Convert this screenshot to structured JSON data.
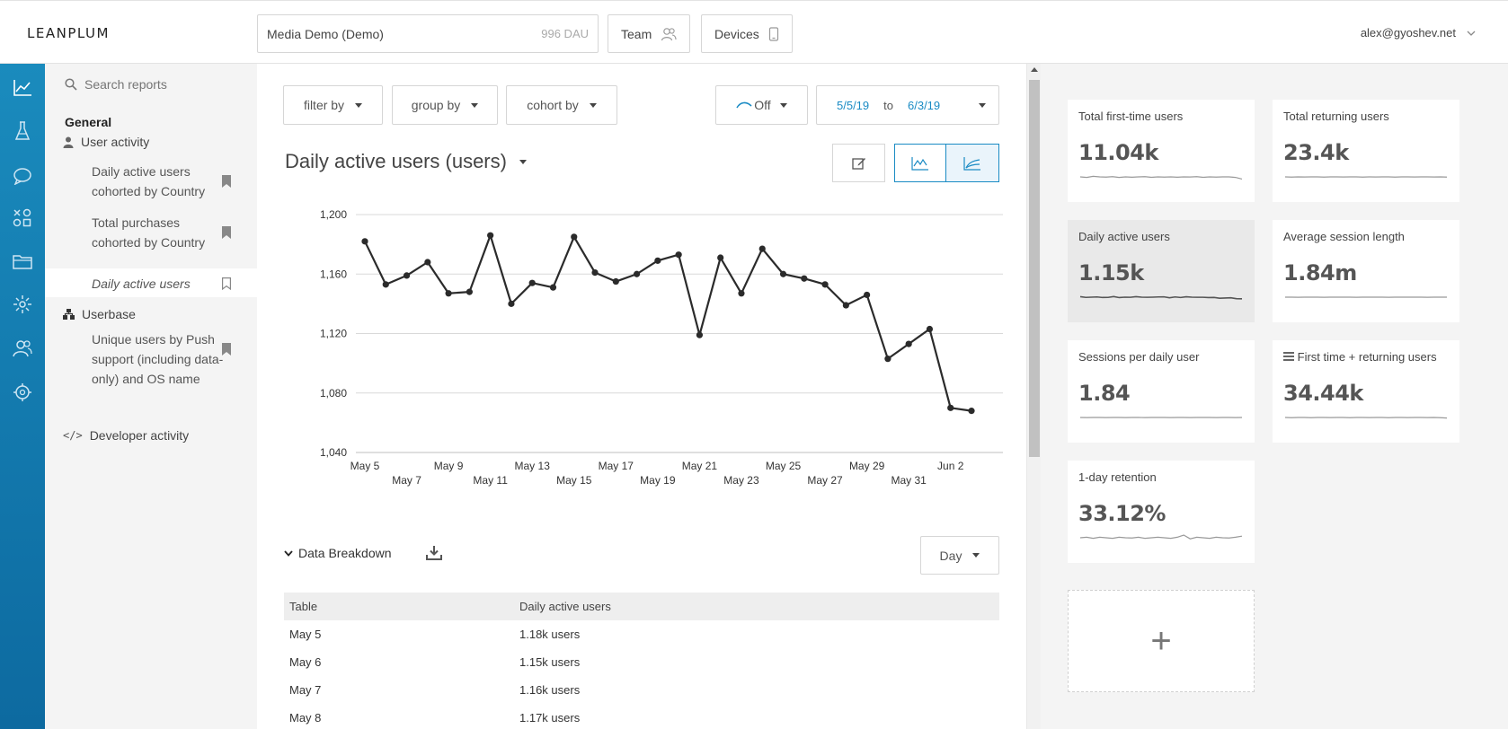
{
  "header": {
    "logo": "LEANPLUM",
    "app_name": "Media Demo (Demo)",
    "app_dau": "996 DAU",
    "team_label": "Team",
    "devices_label": "Devices",
    "user_email": "alex@gyoshev.net"
  },
  "rail": {
    "icons": [
      "analytics-icon",
      "ab-test-icon",
      "messaging-icon",
      "variables-icon",
      "folder-icon",
      "events-icon",
      "users-icon",
      "debug-icon"
    ]
  },
  "nav": {
    "search_placeholder": "Search reports",
    "section": "General",
    "groups": {
      "user_activity": "User activity",
      "userbase": "Userbase",
      "developer_activity": "Developer activity"
    },
    "items": {
      "dau_country": "Daily active users cohorted by Country",
      "purchases_country": "Total purchases cohorted by Country",
      "dau": "Daily active users",
      "unique_push": "Unique users by Push support (including data-only) and OS name"
    }
  },
  "toolbar": {
    "filter_by": "filter by",
    "group_by": "group by",
    "cohort_by": "cohort by",
    "smoothing": "Off",
    "date_from": "5/5/19",
    "date_to_label": "to",
    "date_to": "6/3/19"
  },
  "report": {
    "title": "Daily active users (users)"
  },
  "chart_data": {
    "type": "line",
    "title": "",
    "xlabel": "",
    "ylabel": "",
    "ylim": [
      1040,
      1200
    ],
    "yticks": [
      1040,
      1080,
      1120,
      1160,
      1200
    ],
    "ytick_labels": [
      "1,040",
      "1,080",
      "1,120",
      "1,160",
      "1,200"
    ],
    "xtick_labels": [
      "May 5",
      "May 7",
      "May 9",
      "May 11",
      "May 13",
      "May 15",
      "May 17",
      "May 19",
      "May 21",
      "May 23",
      "May 25",
      "May 27",
      "May 29",
      "May 31",
      "Jun 2"
    ],
    "grid": true,
    "color": "#2b2b2b",
    "x": [
      "May 5",
      "May 6",
      "May 7",
      "May 8",
      "May 9",
      "May 10",
      "May 11",
      "May 12",
      "May 13",
      "May 14",
      "May 15",
      "May 16",
      "May 17",
      "May 18",
      "May 19",
      "May 20",
      "May 21",
      "May 22",
      "May 23",
      "May 24",
      "May 25",
      "May 26",
      "May 27",
      "May 28",
      "May 29",
      "May 30",
      "May 31",
      "Jun 1",
      "Jun 2",
      "Jun 3"
    ],
    "series": [
      {
        "values": [
          1182,
          1153,
          1159,
          1168,
          1147,
          1148,
          1186,
          1140,
          1154,
          1151,
          1185,
          1161,
          1155,
          1160,
          1169,
          1173,
          1119,
          1171,
          1147,
          1177,
          1160,
          1157,
          1153,
          1139,
          1146,
          1103,
          1113,
          1123,
          1070,
          1068
        ]
      }
    ]
  },
  "breakdown": {
    "title": "Data Breakdown",
    "interval": "Day",
    "columns": [
      "Table",
      "Daily active users"
    ],
    "rows": [
      [
        "May 5",
        "1.18k users"
      ],
      [
        "May 6",
        "1.15k users"
      ],
      [
        "May 7",
        "1.16k users"
      ],
      [
        "May 8",
        "1.17k users"
      ]
    ]
  },
  "metrics": [
    {
      "title": "Total first-time users",
      "value": "11.04k",
      "selected": false,
      "spark": [
        0.5,
        0.45,
        0.55,
        0.5,
        0.48,
        0.52,
        0.45,
        0.5,
        0.47,
        0.5,
        0.52,
        0.46,
        0.5,
        0.48,
        0.5,
        0.47,
        0.5,
        0.49,
        0.52,
        0.46,
        0.5,
        0.48,
        0.5,
        0.5,
        0.45,
        0.3
      ]
    },
    {
      "title": "Total returning users",
      "value": "23.4k",
      "selected": false,
      "spark": [
        0.5,
        0.48,
        0.5,
        0.49,
        0.5,
        0.5,
        0.48,
        0.5,
        0.5,
        0.49,
        0.5,
        0.5,
        0.48,
        0.5,
        0.49,
        0.5,
        0.5,
        0.48,
        0.5,
        0.5,
        0.49,
        0.5,
        0.5,
        0.49,
        0.5,
        0.48
      ]
    },
    {
      "title": "Daily active users",
      "value": "1.15k",
      "selected": true,
      "spark": [
        0.55,
        0.48,
        0.5,
        0.52,
        0.47,
        0.48,
        0.56,
        0.46,
        0.5,
        0.49,
        0.55,
        0.5,
        0.49,
        0.5,
        0.52,
        0.53,
        0.44,
        0.52,
        0.47,
        0.54,
        0.5,
        0.49,
        0.49,
        0.46,
        0.47,
        0.4,
        0.42,
        0.44,
        0.36,
        0.35
      ]
    },
    {
      "title": "Average session length",
      "value": "1.84m",
      "selected": false,
      "spark": [
        0.5,
        0.5,
        0.49,
        0.5,
        0.5,
        0.5,
        0.49,
        0.5,
        0.5,
        0.5,
        0.5,
        0.49,
        0.5,
        0.5,
        0.5,
        0.5,
        0.49,
        0.5,
        0.5,
        0.5,
        0.5,
        0.5,
        0.49,
        0.5,
        0.5,
        0.5
      ]
    },
    {
      "title": "Sessions per daily user",
      "value": "1.84",
      "selected": false,
      "spark": [
        0.5,
        0.49,
        0.5,
        0.5,
        0.49,
        0.5,
        0.5,
        0.49,
        0.5,
        0.5,
        0.49,
        0.5,
        0.5,
        0.5,
        0.49,
        0.5,
        0.5,
        0.49,
        0.5,
        0.5,
        0.5,
        0.49,
        0.5,
        0.5,
        0.49,
        0.5
      ]
    },
    {
      "title": "First time + returning users",
      "value": "34.44k",
      "selected": false,
      "icon": "list-icon",
      "spark": [
        0.5,
        0.48,
        0.5,
        0.5,
        0.48,
        0.5,
        0.5,
        0.49,
        0.5,
        0.5,
        0.48,
        0.5,
        0.5,
        0.49,
        0.5,
        0.5,
        0.48,
        0.5,
        0.5,
        0.49,
        0.5,
        0.5,
        0.49,
        0.5,
        0.48,
        0.45
      ]
    },
    {
      "title": "1-day retention",
      "value": "33.12%",
      "selected": false,
      "spark": [
        0.5,
        0.55,
        0.45,
        0.55,
        0.5,
        0.45,
        0.55,
        0.5,
        0.48,
        0.55,
        0.45,
        0.5,
        0.55,
        0.5,
        0.45,
        0.55,
        0.75,
        0.4,
        0.55,
        0.5,
        0.45,
        0.55,
        0.5,
        0.48,
        0.55,
        0.65
      ]
    }
  ],
  "add_card_label": "+"
}
